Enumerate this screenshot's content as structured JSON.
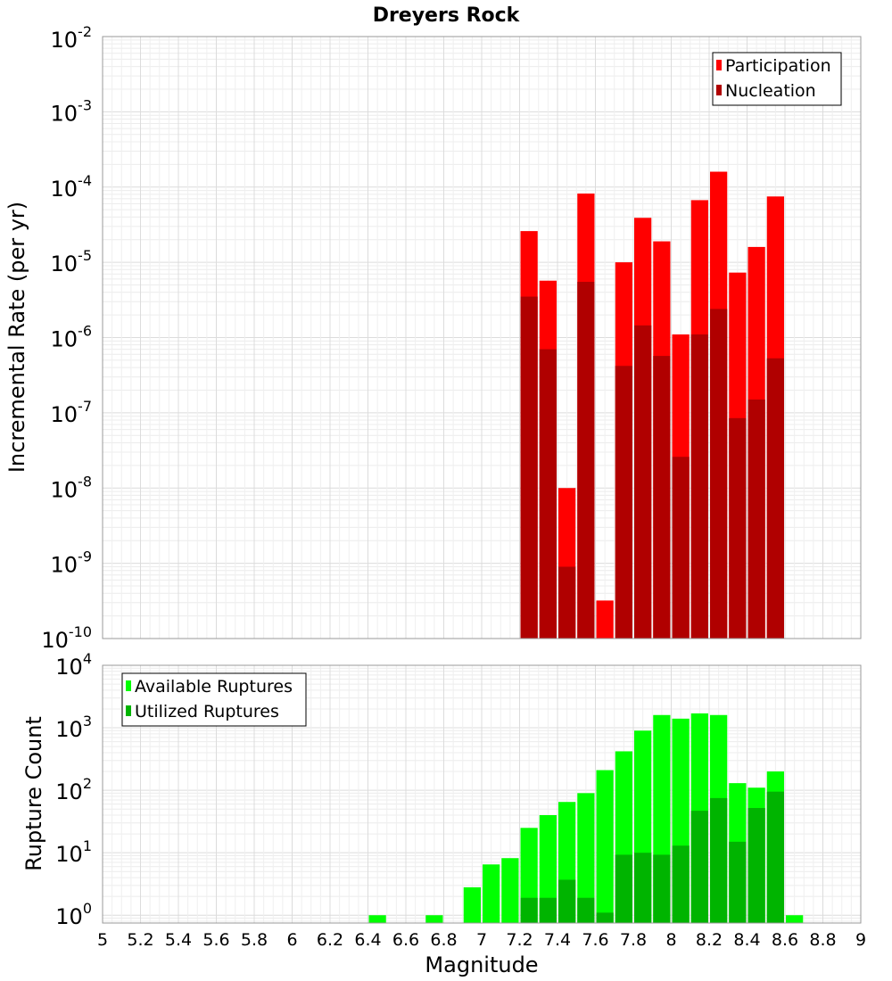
{
  "chart_data": [
    {
      "type": "bar",
      "title": "Dreyers Rock",
      "ylabel": "Incremental Rate (per yr)",
      "xlabel": "",
      "ylog": true,
      "xlim": [
        5,
        9
      ],
      "ylim": [
        1e-10,
        0.01
      ],
      "yticks_exp": [
        -10,
        -9,
        -8,
        -7,
        -6,
        -5,
        -4,
        -3,
        -2
      ],
      "legend_position": "top-right",
      "bar_width": 0.1,
      "x": [
        7.25,
        7.35,
        7.45,
        7.55,
        7.65,
        7.75,
        7.85,
        7.95,
        8.05,
        8.15,
        8.25,
        8.35,
        8.45,
        8.55
      ],
      "series": [
        {
          "name": "Participation",
          "color": "#ff0000",
          "values": [
            2.6e-05,
            5.7e-06,
            1e-08,
            8.2e-05,
            3.2e-10,
            1e-05,
            3.9e-05,
            1.9e-05,
            1.1e-06,
            6.7e-05,
            0.00016,
            7.3e-06,
            1.6e-05,
            7.5e-05
          ]
        },
        {
          "name": "Nucleation",
          "color": "#b00000",
          "values": [
            3.5e-06,
            7e-07,
            9e-10,
            5.5e-06,
            null,
            4.2e-07,
            1.45e-06,
            5.7e-07,
            2.6e-08,
            1.1e-06,
            2.4e-06,
            8.5e-08,
            1.5e-07,
            5.3e-07
          ]
        }
      ]
    },
    {
      "type": "bar",
      "title": "",
      "ylabel": "Rupture Count",
      "xlabel": "Magnitude",
      "ylog": true,
      "xlim": [
        5,
        9
      ],
      "ylim": [
        0.75,
        10000
      ],
      "yticks_exp": [
        0,
        1,
        2,
        3,
        4
      ],
      "xticks": [
        "5",
        "5.2",
        "5.4",
        "5.6",
        "5.8",
        "6",
        "6.2",
        "6.4",
        "6.6",
        "6.8",
        "7",
        "7.2",
        "7.4",
        "7.6",
        "7.8",
        "8",
        "8.2",
        "8.4",
        "8.6",
        "8.8",
        "9"
      ],
      "legend_position": "top-left",
      "bar_width": 0.1,
      "x": [
        6.45,
        6.75,
        6.95,
        7.05,
        7.15,
        7.25,
        7.35,
        7.45,
        7.55,
        7.65,
        7.75,
        7.85,
        7.95,
        8.05,
        8.15,
        8.25,
        8.35,
        8.45,
        8.55,
        8.65
      ],
      "series": [
        {
          "name": "Available Ruptures",
          "color": "#00ff00",
          "values": [
            1,
            1,
            2.8,
            6.5,
            8.2,
            25,
            40,
            65,
            90,
            210,
            420,
            900,
            1600,
            1400,
            1700,
            1600,
            130,
            110,
            200,
            1
          ]
        },
        {
          "name": "Utilized Ruptures",
          "color": "#00b400",
          "values": [
            null,
            null,
            null,
            null,
            null,
            1.9,
            1.9,
            3.7,
            1.9,
            1.1,
            9.3,
            10,
            9.3,
            13,
            47,
            75,
            15,
            52,
            95,
            null
          ]
        }
      ]
    }
  ]
}
